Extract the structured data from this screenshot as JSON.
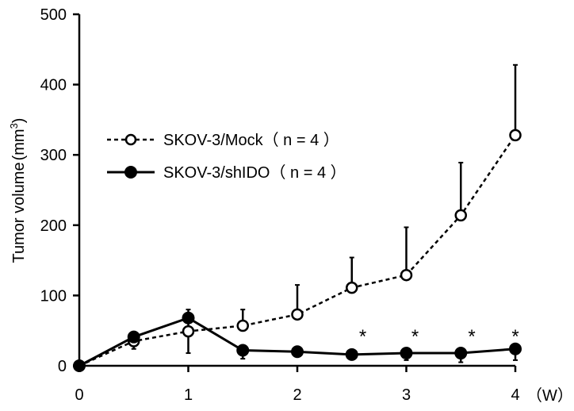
{
  "chart_data": {
    "type": "line",
    "ylabel": "Tumor volume",
    "ylabel_unit_base": "(mm",
    "ylabel_unit_sup": "3",
    "ylabel_unit_close": ")",
    "x_unit": "（W）",
    "ylim": [
      0,
      500
    ],
    "xlim": [
      0,
      4
    ],
    "yticks": [
      "0",
      "100",
      "200",
      "300",
      "400",
      "500"
    ],
    "xticks": [
      "0",
      "1",
      "2",
      "3",
      "4"
    ],
    "grid": false,
    "legend_placement": "upper-left",
    "series": [
      {
        "name": "SKOV-3/Mock（ n = 4 ）",
        "style": "dashed-open-circle",
        "color": "#000000",
        "x": [
          0,
          0.5,
          1,
          1.5,
          2,
          2.5,
          3,
          3.5,
          4
        ],
        "values": [
          0,
          35,
          49,
          57,
          73,
          111,
          129,
          214,
          328
        ],
        "error_upper": [
          0,
          45,
          80,
          80,
          115,
          154,
          197,
          289,
          428
        ],
        "error_lower": [
          0,
          24,
          18,
          57,
          73,
          111,
          129,
          214,
          328
        ]
      },
      {
        "name": "SKOV-3/shIDO（ n = 4 ）",
        "style": "solid-filled-circle",
        "color": "#000000",
        "x": [
          0,
          0.5,
          1,
          1.5,
          2,
          2.5,
          3,
          3.5,
          4
        ],
        "values": [
          0,
          41,
          68,
          22,
          20,
          16,
          18,
          18,
          24
        ],
        "error_upper": [
          0,
          41,
          68,
          22,
          20,
          16,
          18,
          18,
          24
        ],
        "error_lower": [
          0,
          41,
          68,
          10,
          14,
          16,
          8,
          5,
          8
        ]
      }
    ],
    "annotations": [
      {
        "x": 2.6,
        "y": 42,
        "text": "*"
      },
      {
        "x": 3.08,
        "y": 42,
        "text": "*"
      },
      {
        "x": 3.6,
        "y": 42,
        "text": "*"
      },
      {
        "x": 4.0,
        "y": 42,
        "text": "*"
      }
    ]
  }
}
